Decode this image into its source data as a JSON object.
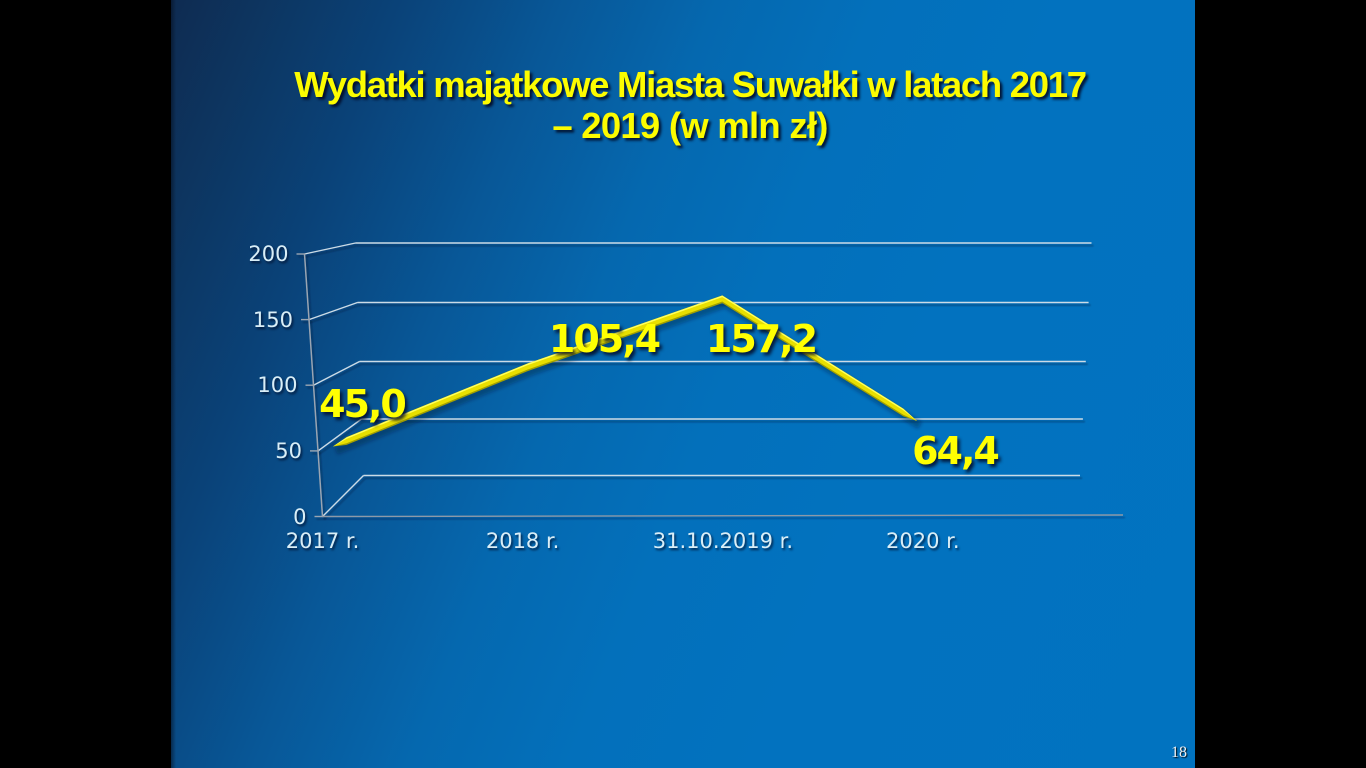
{
  "slide": {
    "title_line1": "Wydatki majątkowe Miasta Suwałki w latach 2017",
    "title_line2": "– 2019 (w mln zł)",
    "page_number": "18",
    "colors": {
      "background_bright": "#0173c0",
      "background_dark": "#15294a",
      "title_text": "#fcfc00",
      "series_line": "#e8df00",
      "series_highlight": "#ffff5e",
      "series_shade": "#a3a000",
      "gridline": "#ccdbe6",
      "axis_line": "#9aa5b2",
      "axis_text": "#d9eef7",
      "data_label_text": "#ffff02"
    }
  },
  "chart_data": {
    "type": "line",
    "title": "Wydatki majątkowe Miasta Suwałki w latach 2017 – 2019 (w mln zł)",
    "categories": [
      "2017 r.",
      "2018 r.",
      "31.10.2019 r.",
      "2020 r."
    ],
    "series": [
      {
        "name": "Wydatki majątkowe",
        "values": [
          45.0,
          105.4,
          157.2,
          64.4
        ]
      }
    ],
    "value_labels": [
      "45,0",
      "105,4",
      "157,2",
      "64,4"
    ],
    "y_ticks": [
      200,
      150,
      100,
      50,
      0
    ],
    "y_tick_labels": [
      "200",
      "150",
      "100",
      "50",
      "0"
    ],
    "ylim": [
      0,
      200
    ],
    "xlabel": "",
    "ylabel": "",
    "unit": "mln zł",
    "grid": true,
    "legend": false,
    "style": "3d-perspective-line"
  }
}
